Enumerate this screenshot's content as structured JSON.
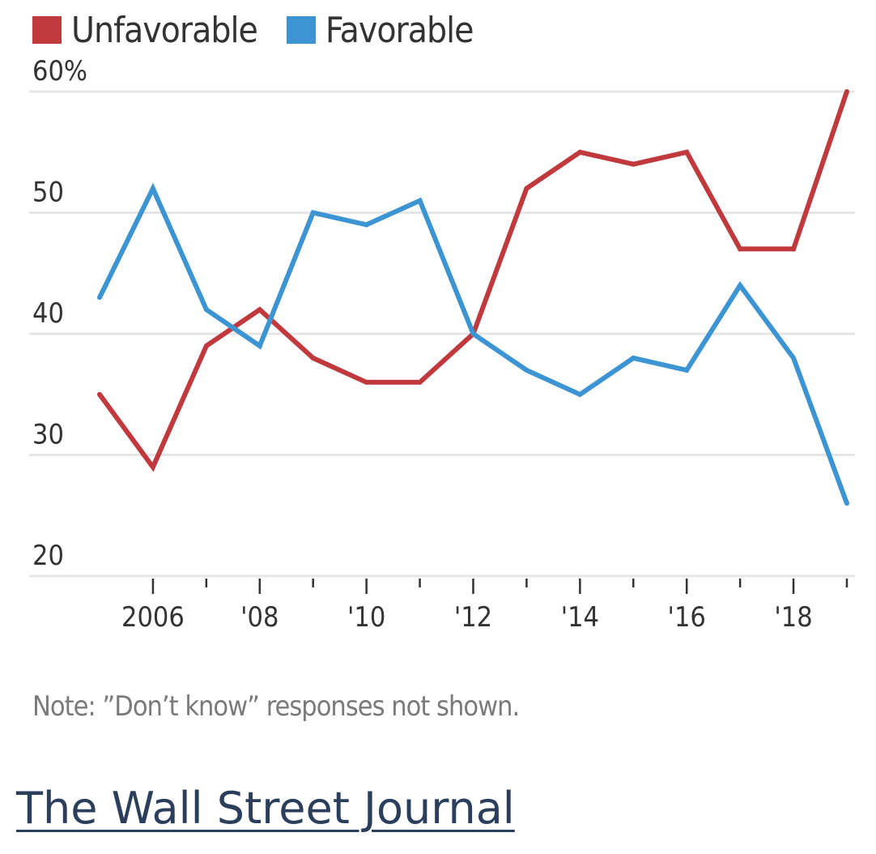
{
  "chart_data": {
    "type": "line",
    "title": "",
    "xlabel": "",
    "ylabel": "",
    "x": [
      2005,
      2006,
      2007,
      2008,
      2009,
      2010,
      2011,
      2012,
      2013,
      2014,
      2015,
      2016,
      2017,
      2018,
      2019
    ],
    "xlim": [
      2005,
      2019
    ],
    "ylim": [
      20,
      60
    ],
    "grid": true,
    "legend_position": "top-left",
    "y_ticks": [
      {
        "value": 60,
        "label": "60%"
      },
      {
        "value": 50,
        "label": "50"
      },
      {
        "value": 40,
        "label": "40"
      },
      {
        "value": 30,
        "label": "30"
      },
      {
        "value": 20,
        "label": "20"
      }
    ],
    "x_ticks": [
      {
        "value": 2006,
        "label": "2006"
      },
      {
        "value": 2008,
        "label": "'08"
      },
      {
        "value": 2010,
        "label": "'10"
      },
      {
        "value": 2012,
        "label": "'12"
      },
      {
        "value": 2014,
        "label": "'14"
      },
      {
        "value": 2016,
        "label": "'16"
      },
      {
        "value": 2018,
        "label": "'18"
      }
    ],
    "x_minor_ticks": [
      2007,
      2009,
      2011,
      2013,
      2015,
      2017,
      2019
    ],
    "series": [
      {
        "name": "Unfavorable",
        "color": "#c0393d",
        "values": [
          35,
          29,
          39,
          42,
          38,
          36,
          36,
          40,
          52,
          55,
          54,
          55,
          47,
          47,
          60
        ]
      },
      {
        "name": "Favorable",
        "color": "#3d94d3",
        "values": [
          43,
          52,
          42,
          39,
          50,
          49,
          51,
          40,
          37,
          35,
          38,
          37,
          44,
          38,
          26
        ]
      }
    ]
  },
  "note": "Note: ”Don’t know” responses not shown.",
  "source": "The Wall Street Journal",
  "colors": {
    "grid": "#e6e6e6",
    "text": "#333333",
    "note": "#7a7a7a",
    "source": "#2b3e5c"
  }
}
